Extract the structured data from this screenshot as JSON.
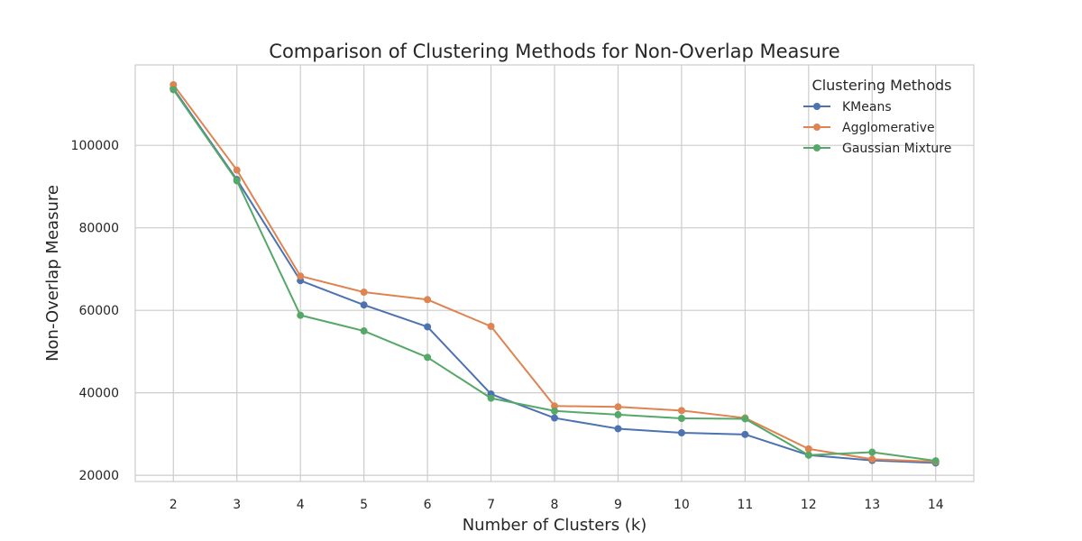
{
  "chart_data": {
    "type": "line",
    "title": "Comparison of Clustering Methods for Non-Overlap Measure",
    "xlabel": "Number of Clusters (k)",
    "ylabel": "Non-Overlap Measure",
    "x": [
      2,
      3,
      4,
      5,
      6,
      7,
      8,
      9,
      10,
      11,
      12,
      13,
      14
    ],
    "xlim": [
      1.4,
      14.6
    ],
    "ylim": [
      18500,
      119500
    ],
    "yticks": [
      20000,
      40000,
      60000,
      80000,
      100000
    ],
    "grid": true,
    "legend": {
      "title": "Clustering Methods",
      "placement": "top-right"
    },
    "series": [
      {
        "name": "KMeans",
        "color": "#4c72b0",
        "values": [
          113800,
          91700,
          67200,
          61300,
          56000,
          39700,
          33900,
          31300,
          30300,
          29900,
          24900,
          23600,
          23000
        ]
      },
      {
        "name": "Agglomerative",
        "color": "#dd8452",
        "values": [
          114700,
          94000,
          68300,
          64400,
          62600,
          56100,
          36800,
          36600,
          35700,
          33900,
          26400,
          23900,
          23300
        ]
      },
      {
        "name": "Gaussian Mixture",
        "color": "#55a868",
        "values": [
          113500,
          91400,
          58800,
          55000,
          48600,
          38700,
          35600,
          34700,
          33800,
          33700,
          24900,
          25600,
          23500
        ]
      }
    ]
  }
}
